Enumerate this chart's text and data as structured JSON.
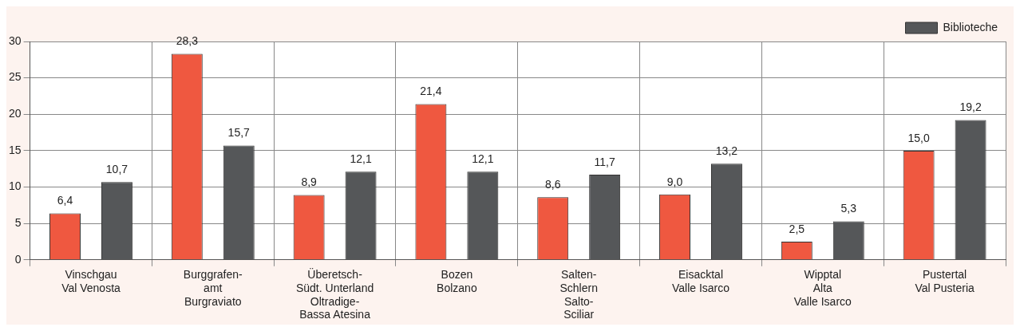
{
  "chart_data": {
    "type": "bar",
    "categories": [
      "Vinschgau\nVal Venosta",
      "Burggrafen-\namt\nBurgraviato",
      "Überetsch-\nSüdt. Unterland\nOltradige-\nBassa Atesina",
      "Bozen\nBolzano",
      "Salten-\nSchlern\nSalto-\nSciliar",
      "Eisacktal\nValle Isarco",
      "Wipptal\nAlta\nValle Isarco",
      "Pustertal\nVal Pusteria"
    ],
    "series": [
      {
        "color": "#ef5840",
        "values": [
          6.4,
          28.3,
          8.9,
          21.4,
          8.6,
          9.0,
          2.5,
          15.0
        ],
        "value_labels": [
          "6,4",
          "28,3",
          "8,9",
          "21,4",
          "8,6",
          "9,0",
          "2,5",
          "15,0"
        ]
      },
      {
        "name": "Biblioteche",
        "color": "#555759",
        "values": [
          10.7,
          15.7,
          12.1,
          12.1,
          11.7,
          13.2,
          5.3,
          19.2
        ],
        "value_labels": [
          "10,7",
          "15,7",
          "12,1",
          "12,1",
          "11,7",
          "13,2",
          "5,3",
          "19,2"
        ]
      }
    ],
    "ylim": [
      0,
      30
    ],
    "yticks": [
      0,
      5,
      10,
      15,
      20,
      25,
      30
    ],
    "grid": true,
    "legend": "top right"
  }
}
